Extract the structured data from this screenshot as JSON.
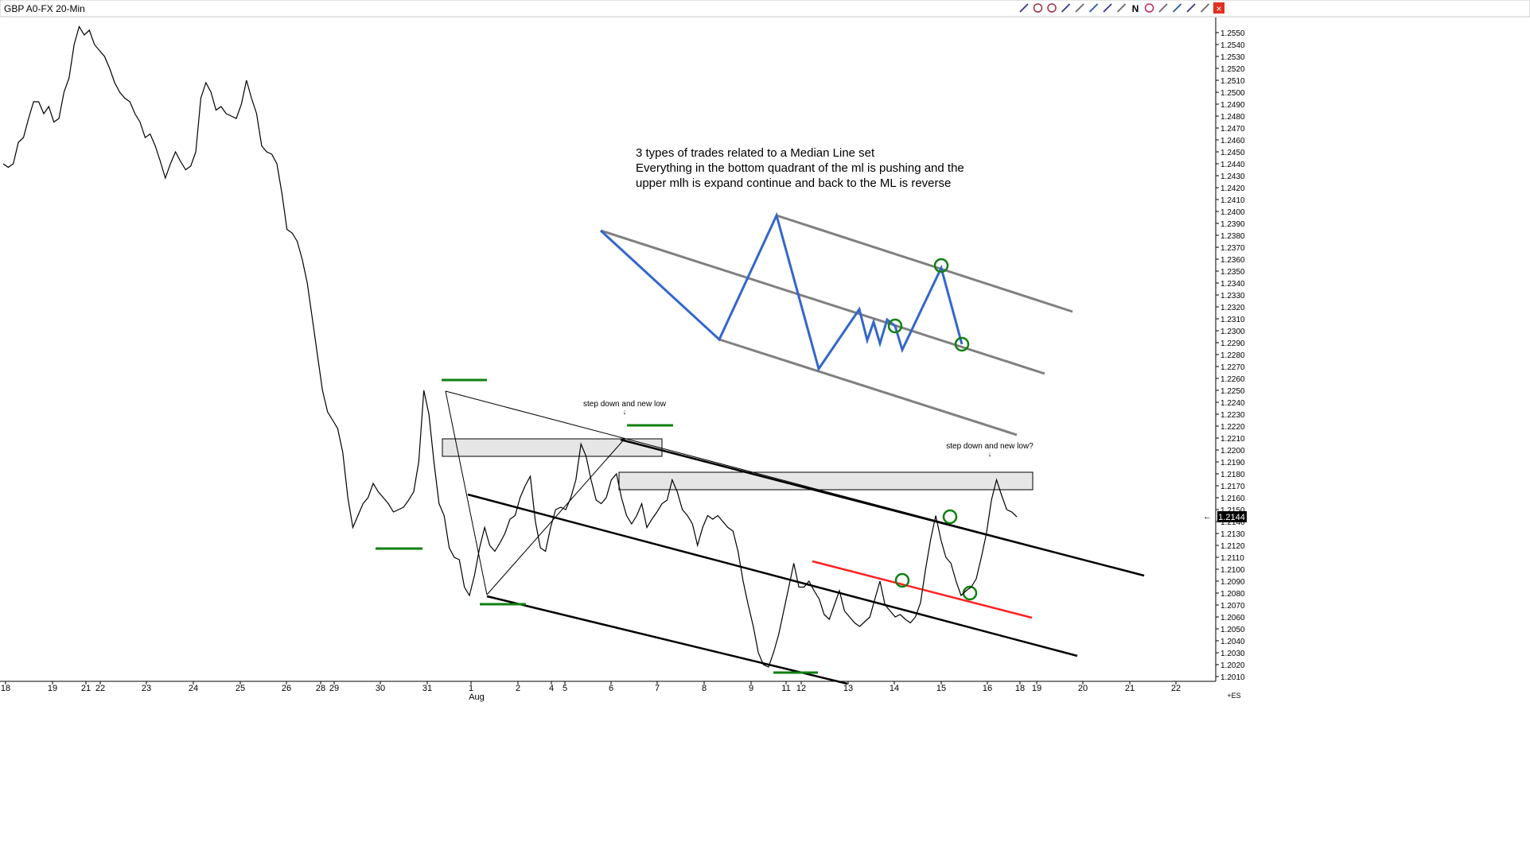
{
  "window": {
    "title": "GBP A0-FX 20-Min",
    "toolbar_icons": [
      "cursor-icon",
      "crosshair-icon",
      "zoom-icon",
      "pencil-icon",
      "trendline-icon",
      "channel-icon",
      "pitchfork-icon",
      "ray-icon",
      "n-icon",
      "circle-icon",
      "flag-icon",
      "bar-icon",
      "left-arrow-icon",
      "right-arrow-icon",
      "close-icon"
    ],
    "toolbar_n_label": "N",
    "corner_label": "+ES"
  },
  "colors": {
    "price": "#000000",
    "median_line_blue": "#3366cc",
    "channel_gray": "#808080",
    "green": "#108010",
    "red": "#ff2020",
    "zone_fill": "#e6e6e6",
    "close_button": "#e03020"
  },
  "annotations": {
    "note_line1": "3 types of trades related to a Median Line set",
    "note_line2": "Everything in the bottom quadrant of the ml is pushing and the",
    "note_line3": "upper mlh is expand continue and back to the ML is reverse",
    "label_step_down": "step down and new low",
    "label_step_down_q": "step down and new low?"
  },
  "chart_data": {
    "type": "line",
    "symbol": "GBP A0-FX",
    "interval": "20-Min",
    "ylim": [
      1.2005,
      1.2565
    ],
    "last_price": "1.2144",
    "y_ticks": [
      "1.2550",
      "1.2540",
      "1.2530",
      "1.2520",
      "1.2510",
      "1.2500",
      "1.2490",
      "1.2480",
      "1.2470",
      "1.2460",
      "1.2450",
      "1.2440",
      "1.2430",
      "1.2420",
      "1.2410",
      "1.2400",
      "1.2390",
      "1.2380",
      "1.2370",
      "1.2360",
      "1.2350",
      "1.2340",
      "1.2330",
      "1.2320",
      "1.2310",
      "1.2300",
      "1.2290",
      "1.2280",
      "1.2270",
      "1.2260",
      "1.2250",
      "1.2240",
      "1.2230",
      "1.2220",
      "1.2210",
      "1.2200",
      "1.2190",
      "1.2180",
      "1.2170",
      "1.2160",
      "1.2150",
      "1.2140",
      "1.2130",
      "1.2120",
      "1.2110",
      "1.2100",
      "1.2090",
      "1.2080",
      "1.2070",
      "1.2060",
      "1.2050",
      "1.2040",
      "1.2030",
      "1.2020",
      "1.2010"
    ],
    "x_ticks": [
      "18",
      "19",
      "21",
      "22",
      "23",
      "24",
      "25",
      "26",
      "28",
      "29",
      "30",
      "31",
      "1",
      "2",
      "4",
      "5",
      "6",
      "7",
      "8",
      "9",
      "11",
      "12",
      "13",
      "14",
      "15",
      "16",
      "18",
      "19",
      "20",
      "21",
      "22"
    ],
    "x_month_label": "Aug",
    "series": [
      {
        "values": [
          [
            0,
            1.244
          ],
          [
            2,
            1.2437
          ],
          [
            4,
            1.244
          ],
          [
            6,
            1.2458
          ],
          [
            8,
            1.2462
          ],
          [
            10,
            1.2478
          ],
          [
            12,
            1.2492
          ],
          [
            14,
            1.2492
          ],
          [
            16,
            1.2482
          ],
          [
            18,
            1.2488
          ],
          [
            20,
            1.2475
          ],
          [
            22,
            1.2478
          ],
          [
            24,
            1.25
          ],
          [
            26,
            1.2512
          ],
          [
            28,
            1.254
          ],
          [
            30,
            1.2555
          ],
          [
            32,
            1.2548
          ],
          [
            34,
            1.2552
          ],
          [
            36,
            1.254
          ],
          [
            38,
            1.2535
          ],
          [
            40,
            1.253
          ],
          [
            42,
            1.252
          ],
          [
            44,
            1.2508
          ],
          [
            46,
            1.25
          ],
          [
            48,
            1.2495
          ],
          [
            50,
            1.2492
          ],
          [
            52,
            1.2482
          ],
          [
            54,
            1.2475
          ],
          [
            56,
            1.2462
          ],
          [
            58,
            1.2465
          ],
          [
            60,
            1.2455
          ],
          [
            62,
            1.2442
          ],
          [
            64,
            1.2428
          ],
          [
            66,
            1.244
          ],
          [
            68,
            1.245
          ],
          [
            70,
            1.2442
          ],
          [
            72,
            1.2435
          ],
          [
            74,
            1.2438
          ],
          [
            76,
            1.245
          ],
          [
            78,
            1.2495
          ],
          [
            80,
            1.2508
          ],
          [
            82,
            1.25
          ],
          [
            84,
            1.2485
          ],
          [
            86,
            1.2488
          ],
          [
            88,
            1.2482
          ],
          [
            90,
            1.248
          ],
          [
            92,
            1.2478
          ],
          [
            94,
            1.249
          ],
          [
            96,
            1.251
          ],
          [
            98,
            1.2495
          ],
          [
            100,
            1.2482
          ],
          [
            102,
            1.2455
          ],
          [
            104,
            1.245
          ],
          [
            106,
            1.2448
          ],
          [
            108,
            1.244
          ],
          [
            110,
            1.2415
          ],
          [
            112,
            1.2385
          ],
          [
            114,
            1.2382
          ],
          [
            116,
            1.2375
          ],
          [
            118,
            1.236
          ],
          [
            120,
            1.234
          ],
          [
            122,
            1.231
          ],
          [
            124,
            1.228
          ],
          [
            126,
            1.225
          ],
          [
            128,
            1.2232
          ],
          [
            130,
            1.2225
          ],
          [
            132,
            1.2218
          ],
          [
            134,
            1.2198
          ],
          [
            136,
            1.216
          ],
          [
            138,
            1.2135
          ],
          [
            140,
            1.2145
          ],
          [
            142,
            1.2155
          ],
          [
            144,
            1.216
          ],
          [
            146,
            1.2172
          ],
          [
            148,
            1.2165
          ],
          [
            150,
            1.216
          ],
          [
            152,
            1.2155
          ],
          [
            154,
            1.2148
          ],
          [
            156,
            1.215
          ],
          [
            158,
            1.2152
          ],
          [
            160,
            1.2158
          ],
          [
            162,
            1.2165
          ],
          [
            164,
            1.219
          ],
          [
            166,
            1.225
          ],
          [
            168,
            1.223
          ],
          [
            170,
            1.219
          ],
          [
            172,
            1.2155
          ],
          [
            174,
            1.2145
          ],
          [
            176,
            1.2118
          ],
          [
            178,
            1.211
          ],
          [
            180,
            1.2108
          ],
          [
            182,
            1.2085
          ],
          [
            184,
            1.2078
          ],
          [
            186,
            1.2095
          ],
          [
            188,
            1.2118
          ],
          [
            190,
            1.2135
          ],
          [
            192,
            1.212
          ],
          [
            194,
            1.2115
          ],
          [
            196,
            1.2122
          ],
          [
            198,
            1.213
          ],
          [
            200,
            1.2142
          ],
          [
            202,
            1.2145
          ],
          [
            204,
            1.216
          ],
          [
            206,
            1.217
          ],
          [
            208,
            1.2178
          ],
          [
            210,
            1.214
          ],
          [
            212,
            1.2118
          ],
          [
            214,
            1.2115
          ],
          [
            216,
            1.2135
          ],
          [
            218,
            1.215
          ],
          [
            220,
            1.2152
          ],
          [
            222,
            1.215
          ],
          [
            224,
            1.216
          ],
          [
            226,
            1.2175
          ],
          [
            228,
            1.2205
          ],
          [
            230,
            1.2195
          ],
          [
            232,
            1.2175
          ],
          [
            234,
            1.2158
          ],
          [
            236,
            1.2155
          ],
          [
            238,
            1.216
          ],
          [
            240,
            1.2175
          ],
          [
            242,
            1.218
          ],
          [
            244,
            1.216
          ],
          [
            246,
            1.2145
          ],
          [
            248,
            1.2138
          ],
          [
            250,
            1.2145
          ],
          [
            252,
            1.2155
          ],
          [
            254,
            1.2135
          ],
          [
            256,
            1.2142
          ],
          [
            258,
            1.2148
          ],
          [
            260,
            1.2155
          ],
          [
            262,
            1.2158
          ],
          [
            264,
            1.2175
          ],
          [
            266,
            1.2165
          ],
          [
            268,
            1.215
          ],
          [
            270,
            1.2145
          ],
          [
            272,
            1.2138
          ],
          [
            274,
            1.212
          ],
          [
            276,
            1.2135
          ],
          [
            278,
            1.2145
          ],
          [
            280,
            1.2142
          ],
          [
            282,
            1.2145
          ],
          [
            284,
            1.214
          ],
          [
            286,
            1.2135
          ],
          [
            288,
            1.2132
          ],
          [
            290,
            1.2115
          ],
          [
            292,
            1.209
          ],
          [
            294,
            1.207
          ],
          [
            296,
            1.2052
          ],
          [
            298,
            1.203
          ],
          [
            300,
            1.202
          ],
          [
            302,
            1.2018
          ],
          [
            304,
            1.203
          ],
          [
            306,
            1.2045
          ],
          [
            308,
            1.2065
          ],
          [
            310,
            1.2085
          ],
          [
            312,
            1.2105
          ],
          [
            314,
            1.2085
          ],
          [
            316,
            1.2085
          ],
          [
            318,
            1.209
          ],
          [
            320,
            1.2082
          ],
          [
            322,
            1.2075
          ],
          [
            324,
            1.2062
          ],
          [
            326,
            1.2058
          ],
          [
            328,
            1.207
          ],
          [
            330,
            1.2082
          ],
          [
            332,
            1.2065
          ],
          [
            334,
            1.206
          ],
          [
            336,
            1.2055
          ],
          [
            338,
            1.2052
          ],
          [
            340,
            1.2056
          ],
          [
            342,
            1.206
          ],
          [
            344,
            1.2075
          ],
          [
            346,
            1.209
          ],
          [
            348,
            1.207
          ],
          [
            350,
            1.2065
          ],
          [
            352,
            1.206
          ],
          [
            354,
            1.2062
          ],
          [
            356,
            1.2058
          ],
          [
            358,
            1.2055
          ],
          [
            360,
            1.206
          ],
          [
            362,
            1.2072
          ],
          [
            364,
            1.21
          ],
          [
            366,
            1.2125
          ],
          [
            368,
            1.2145
          ],
          [
            370,
            1.2125
          ],
          [
            372,
            1.211
          ],
          [
            374,
            1.2105
          ],
          [
            376,
            1.209
          ],
          [
            378,
            1.2078
          ],
          [
            380,
            1.2082
          ],
          [
            382,
            1.2085
          ],
          [
            384,
            1.2092
          ],
          [
            386,
            1.211
          ],
          [
            388,
            1.213
          ],
          [
            390,
            1.2158
          ],
          [
            392,
            1.2175
          ],
          [
            394,
            1.2162
          ],
          [
            396,
            1.215
          ],
          [
            398,
            1.2148
          ],
          [
            400,
            1.2144
          ]
        ]
      }
    ]
  }
}
